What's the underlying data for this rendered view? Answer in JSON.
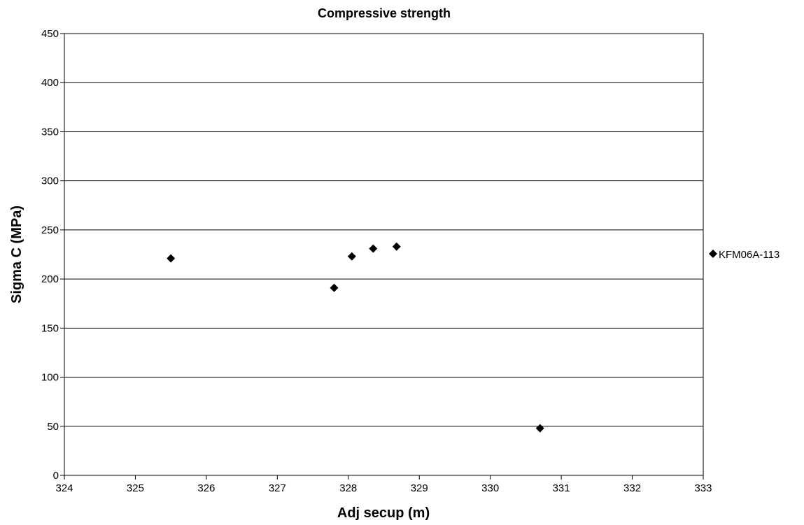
{
  "chart_data": {
    "type": "scatter",
    "title": "Compressive strength",
    "xlabel": "Adj secup (m)",
    "ylabel": "Sigma C (MPa)",
    "xlim": [
      324,
      333
    ],
    "ylim": [
      0,
      450
    ],
    "xticks": [
      324,
      325,
      326,
      327,
      328,
      329,
      330,
      331,
      332,
      333
    ],
    "yticks": [
      0,
      50,
      100,
      150,
      200,
      250,
      300,
      350,
      400,
      450
    ],
    "grid": "horizontal",
    "legend_position": "right",
    "series": [
      {
        "name": "KFM06A-113",
        "marker": "diamond",
        "color": "#000000",
        "points": [
          {
            "x": 325.5,
            "y": 221
          },
          {
            "x": 327.8,
            "y": 191
          },
          {
            "x": 328.05,
            "y": 223
          },
          {
            "x": 328.35,
            "y": 231
          },
          {
            "x": 328.68,
            "y": 233
          },
          {
            "x": 330.7,
            "y": 48
          }
        ]
      }
    ]
  }
}
